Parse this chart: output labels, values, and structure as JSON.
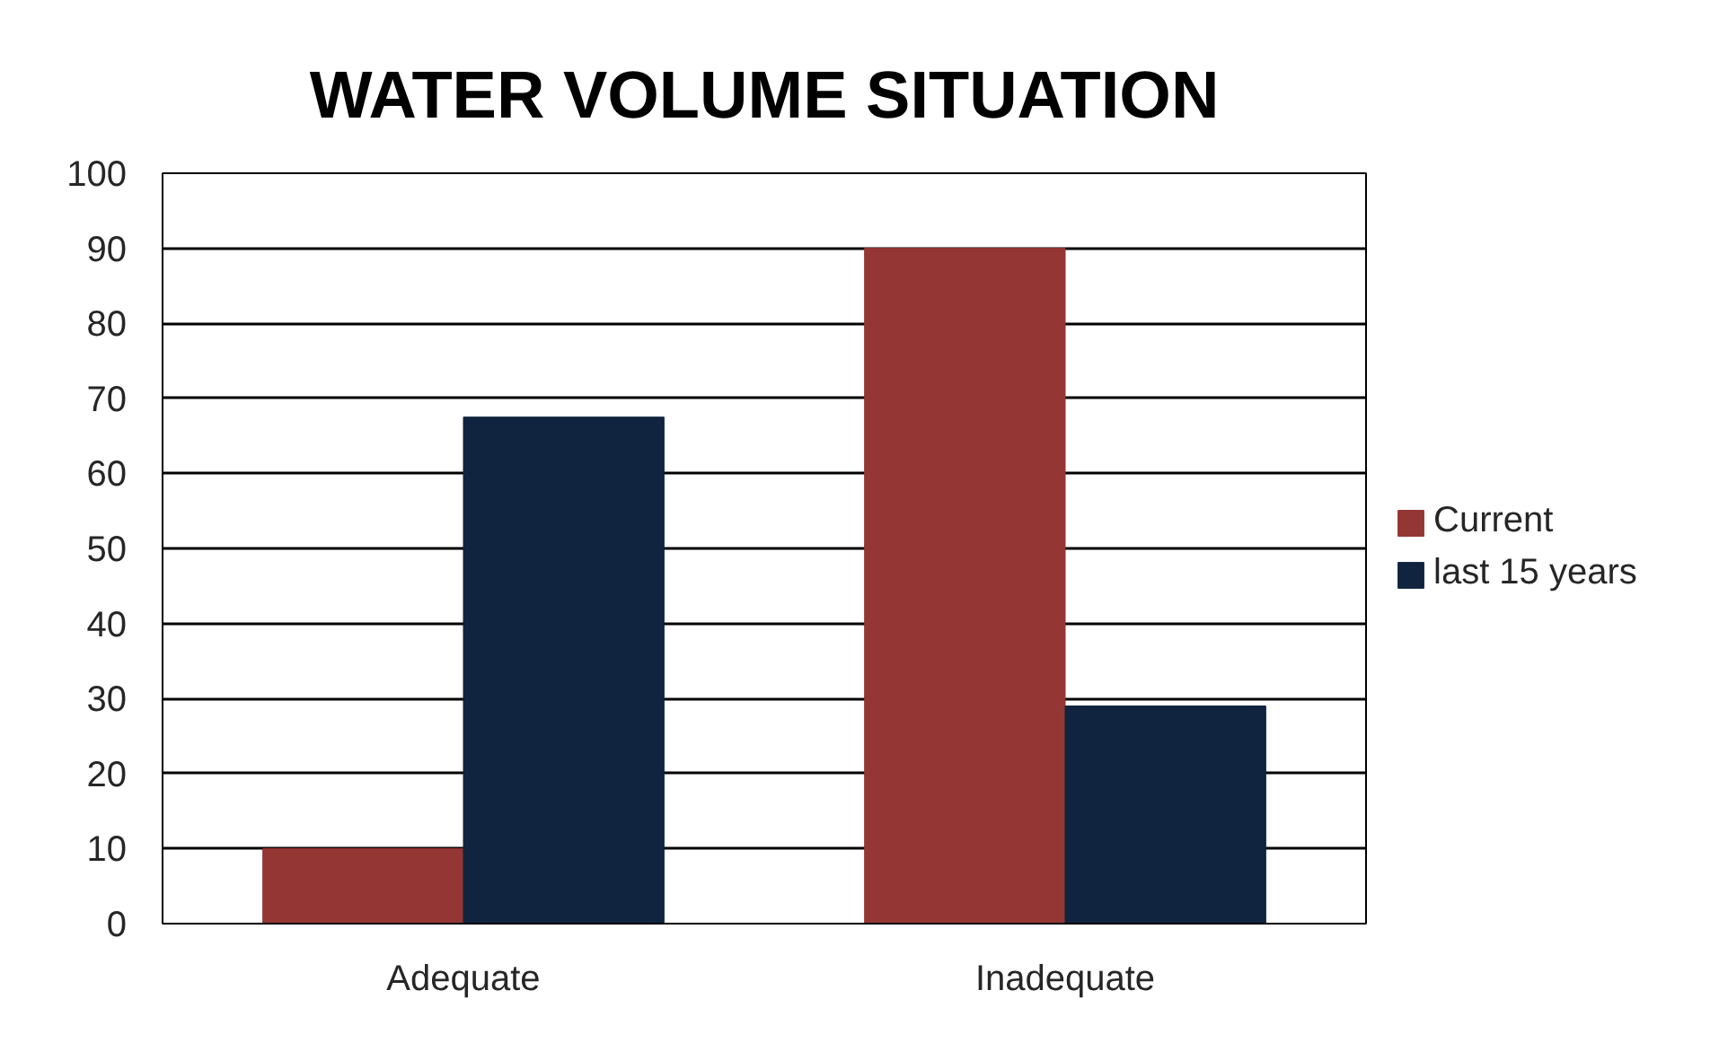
{
  "chart_data": {
    "type": "bar",
    "title": "WATER VOLUME SITUATION",
    "categories": [
      "Adequate",
      "Inadequate"
    ],
    "series": [
      {
        "name": "Current",
        "color": "#943634",
        "values": [
          10,
          90
        ]
      },
      {
        "name": "last 15 years",
        "color": "#10243f",
        "values": [
          67.5,
          29
        ]
      }
    ],
    "ylim": [
      0,
      100
    ],
    "yticks": [
      0,
      10,
      20,
      30,
      40,
      50,
      60,
      70,
      80,
      90,
      100
    ],
    "grid": "y",
    "legend": "right"
  }
}
